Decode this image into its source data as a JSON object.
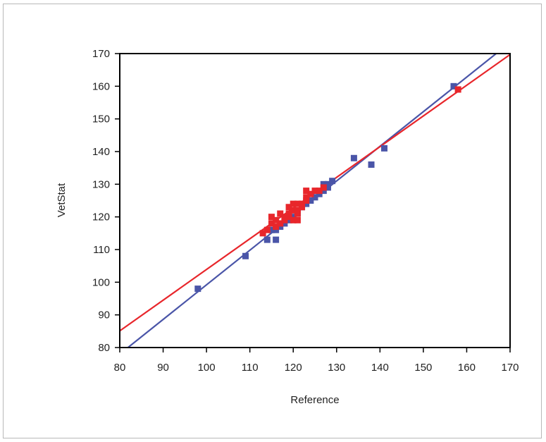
{
  "chart_data": {
    "type": "scatter",
    "xlabel": "Reference",
    "ylabel": "VetStat",
    "xlim": [
      80,
      170
    ],
    "ylim": [
      80,
      170
    ],
    "xticks": [
      80,
      90,
      100,
      110,
      120,
      130,
      140,
      150,
      160,
      170
    ],
    "yticks": [
      80,
      90,
      100,
      110,
      120,
      130,
      140,
      150,
      160,
      170
    ],
    "grid": false,
    "legend": "none",
    "series": [
      {
        "color": "#4a55a8",
        "points": [
          [
            98,
            98
          ],
          [
            109,
            108
          ],
          [
            114,
            113
          ],
          [
            116,
            113
          ],
          [
            115,
            116
          ],
          [
            116,
            116
          ],
          [
            117,
            117
          ],
          [
            118,
            118
          ],
          [
            119,
            119
          ],
          [
            120,
            120
          ],
          [
            121,
            121
          ],
          [
            122,
            123
          ],
          [
            123,
            124
          ],
          [
            124,
            125
          ],
          [
            125,
            126
          ],
          [
            126,
            127
          ],
          [
            127,
            128
          ],
          [
            127,
            130
          ],
          [
            128,
            129
          ],
          [
            128,
            130
          ],
          [
            129,
            131
          ],
          [
            134,
            138
          ],
          [
            138,
            136
          ],
          [
            141,
            141
          ],
          [
            157,
            160
          ]
        ],
        "fit": {
          "slope": 1.06,
          "intercept": -6.8
        }
      },
      {
        "color": "#e8262b",
        "points": [
          [
            113,
            115
          ],
          [
            114,
            116
          ],
          [
            115,
            120
          ],
          [
            115,
            118
          ],
          [
            116,
            119
          ],
          [
            116,
            117
          ],
          [
            117,
            121
          ],
          [
            117,
            118
          ],
          [
            118,
            119
          ],
          [
            118,
            120
          ],
          [
            119,
            121
          ],
          [
            119,
            123
          ],
          [
            119,
            120
          ],
          [
            120,
            122
          ],
          [
            120,
            124
          ],
          [
            120,
            119
          ],
          [
            121,
            121
          ],
          [
            121,
            122
          ],
          [
            121,
            124
          ],
          [
            121,
            119
          ],
          [
            122,
            123
          ],
          [
            122,
            124
          ],
          [
            123,
            125
          ],
          [
            123,
            128
          ],
          [
            123,
            126
          ],
          [
            124,
            127
          ],
          [
            125,
            128
          ],
          [
            126,
            128
          ],
          [
            127,
            129
          ],
          [
            158,
            159
          ]
        ],
        "fit": {
          "slope": 0.94,
          "intercept": 9.9
        }
      }
    ]
  }
}
